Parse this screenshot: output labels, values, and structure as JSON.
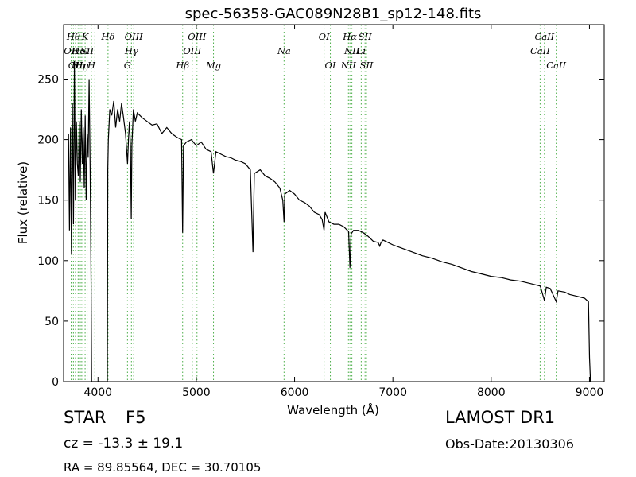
{
  "chart_data": {
    "type": "line",
    "title": "spec-56358-GAC089N28B1_sp12-148.fits",
    "xlabel": "Wavelength (Å)",
    "ylabel": "Flux (relative)",
    "xlim": [
      3650,
      9150
    ],
    "ylim": [
      0,
      295
    ],
    "xticks": [
      4000,
      5000,
      6000,
      7000,
      8000,
      9000
    ],
    "yticks": [
      0,
      50,
      100,
      150,
      200,
      250
    ],
    "grid": false,
    "line_color": "#000000",
    "marker_color": "#4daf4a",
    "series": [
      {
        "values": [
          [
            3700,
            205
          ],
          [
            3710,
            125
          ],
          [
            3720,
            210
          ],
          [
            3730,
            105
          ],
          [
            3740,
            230
          ],
          [
            3750,
            130
          ],
          [
            3760,
            265
          ],
          [
            3770,
            150
          ],
          [
            3780,
            215
          ],
          [
            3790,
            180
          ],
          [
            3800,
            170
          ],
          [
            3810,
            215
          ],
          [
            3820,
            165
          ],
          [
            3830,
            225
          ],
          [
            3840,
            180
          ],
          [
            3850,
            210
          ],
          [
            3860,
            160
          ],
          [
            3870,
            220
          ],
          [
            3880,
            150
          ],
          [
            3890,
            205
          ],
          [
            3900,
            185
          ],
          [
            3910,
            250
          ],
          [
            3920,
            175
          ],
          [
            3930,
            80
          ],
          [
            3935,
            0
          ],
          [
            4095,
            0
          ],
          [
            4100,
            175
          ],
          [
            4105,
            200
          ],
          [
            4120,
            225
          ],
          [
            4140,
            220
          ],
          [
            4160,
            232
          ],
          [
            4180,
            210
          ],
          [
            4200,
            225
          ],
          [
            4220,
            215
          ],
          [
            4240,
            230
          ],
          [
            4260,
            218
          ],
          [
            4280,
            205
          ],
          [
            4300,
            180
          ],
          [
            4310,
            200
          ],
          [
            4320,
            215
          ],
          [
            4330,
            195
          ],
          [
            4338,
            134
          ],
          [
            4345,
            195
          ],
          [
            4360,
            225
          ],
          [
            4380,
            215
          ],
          [
            4400,
            222
          ],
          [
            4450,
            218
          ],
          [
            4500,
            215
          ],
          [
            4550,
            212
          ],
          [
            4600,
            213
          ],
          [
            4650,
            205
          ],
          [
            4700,
            210
          ],
          [
            4750,
            205
          ],
          [
            4800,
            202
          ],
          [
            4850,
            200
          ],
          [
            4861,
            123
          ],
          [
            4870,
            195
          ],
          [
            4900,
            198
          ],
          [
            4950,
            200
          ],
          [
            5000,
            195
          ],
          [
            5050,
            198
          ],
          [
            5100,
            192
          ],
          [
            5150,
            190
          ],
          [
            5175,
            172
          ],
          [
            5200,
            190
          ],
          [
            5250,
            188
          ],
          [
            5300,
            186
          ],
          [
            5350,
            185
          ],
          [
            5400,
            183
          ],
          [
            5450,
            182
          ],
          [
            5500,
            180
          ],
          [
            5550,
            175
          ],
          [
            5577,
            107
          ],
          [
            5590,
            172
          ],
          [
            5650,
            175
          ],
          [
            5700,
            170
          ],
          [
            5750,
            168
          ],
          [
            5800,
            165
          ],
          [
            5850,
            160
          ],
          [
            5880,
            150
          ],
          [
            5893,
            132
          ],
          [
            5900,
            155
          ],
          [
            5950,
            158
          ],
          [
            6000,
            155
          ],
          [
            6050,
            150
          ],
          [
            6100,
            148
          ],
          [
            6150,
            145
          ],
          [
            6200,
            140
          ],
          [
            6250,
            138
          ],
          [
            6280,
            134
          ],
          [
            6300,
            125
          ],
          [
            6310,
            140
          ],
          [
            6350,
            132
          ],
          [
            6400,
            130
          ],
          [
            6450,
            130
          ],
          [
            6500,
            128
          ],
          [
            6550,
            124
          ],
          [
            6563,
            94
          ],
          [
            6575,
            122
          ],
          [
            6600,
            125
          ],
          [
            6650,
            125
          ],
          [
            6700,
            123
          ],
          [
            6750,
            120
          ],
          [
            6800,
            116
          ],
          [
            6850,
            115
          ],
          [
            6867,
            112
          ],
          [
            6880,
            115
          ],
          [
            6900,
            117
          ],
          [
            7000,
            113
          ],
          [
            7100,
            110
          ],
          [
            7200,
            107
          ],
          [
            7300,
            104
          ],
          [
            7400,
            102
          ],
          [
            7500,
            99
          ],
          [
            7600,
            97
          ],
          [
            7700,
            94
          ],
          [
            7800,
            91
          ],
          [
            7900,
            89
          ],
          [
            8000,
            87
          ],
          [
            8100,
            86
          ],
          [
            8200,
            84
          ],
          [
            8300,
            83
          ],
          [
            8400,
            81
          ],
          [
            8500,
            79
          ],
          [
            8542,
            67
          ],
          [
            8560,
            78
          ],
          [
            8600,
            77
          ],
          [
            8662,
            66
          ],
          [
            8680,
            75
          ],
          [
            8750,
            74
          ],
          [
            8800,
            72
          ],
          [
            8850,
            71
          ],
          [
            8900,
            70
          ],
          [
            8950,
            69
          ],
          [
            8990,
            66
          ],
          [
            9000,
            20
          ],
          [
            9010,
            0
          ]
        ]
      }
    ],
    "line_markers": [
      {
        "wavelength": 3727,
        "label": "OII",
        "row": 2
      },
      {
        "wavelength": 3750,
        "label": "Hθ",
        "row": 1
      },
      {
        "wavelength": 3771,
        "label": "OII",
        "row": 3
      },
      {
        "wavelength": 3798,
        "label": "Hη",
        "row": 3
      },
      {
        "wavelength": 3820,
        "label": "HeI",
        "row": 2
      },
      {
        "wavelength": 3835,
        "label": "Hη",
        "row": 3
      },
      {
        "wavelength": 3869,
        "label": "K",
        "row": 1
      },
      {
        "wavelength": 3889,
        "label": "SII",
        "row": 2
      },
      {
        "wavelength": 3933,
        "label": "H",
        "row": 3
      },
      {
        "wavelength": 3968,
        "label": "",
        "row": 0
      },
      {
        "wavelength": 4102,
        "label": "Hδ",
        "row": 1
      },
      {
        "wavelength": 4300,
        "label": "G",
        "row": 3
      },
      {
        "wavelength": 4340,
        "label": "Hγ",
        "row": 2
      },
      {
        "wavelength": 4363,
        "label": "OIII",
        "row": 1
      },
      {
        "wavelength": 4861,
        "label": "Hβ",
        "row": 3
      },
      {
        "wavelength": 4959,
        "label": "OIII",
        "row": 2
      },
      {
        "wavelength": 5007,
        "label": "OIII",
        "row": 1
      },
      {
        "wavelength": 5175,
        "label": "Mg",
        "row": 3
      },
      {
        "wavelength": 5893,
        "label": "Na",
        "row": 2
      },
      {
        "wavelength": 6300,
        "label": "OI",
        "row": 1
      },
      {
        "wavelength": 6364,
        "label": "OI",
        "row": 3
      },
      {
        "wavelength": 6548,
        "label": "NII",
        "row": 3
      },
      {
        "wavelength": 6563,
        "label": "Hα",
        "row": 1
      },
      {
        "wavelength": 6583,
        "label": "NII",
        "row": 2
      },
      {
        "wavelength": 6678,
        "label": "Li",
        "row": 2
      },
      {
        "wavelength": 6717,
        "label": "SII",
        "row": 1
      },
      {
        "wavelength": 6731,
        "label": "SII",
        "row": 3
      },
      {
        "wavelength": 8498,
        "label": "CaII",
        "row": 2
      },
      {
        "wavelength": 8542,
        "label": "CaII",
        "row": 1
      },
      {
        "wavelength": 8662,
        "label": "CaII",
        "row": 3
      }
    ]
  },
  "object": {
    "class": "STAR",
    "subclass": "F5",
    "redshift": "cz = -13.3 ± 19.1",
    "coords": "RA = 89.85564, DEC = 30.70105",
    "survey": "LAMOST DR1",
    "obs_date": "Obs-Date:20130306"
  }
}
